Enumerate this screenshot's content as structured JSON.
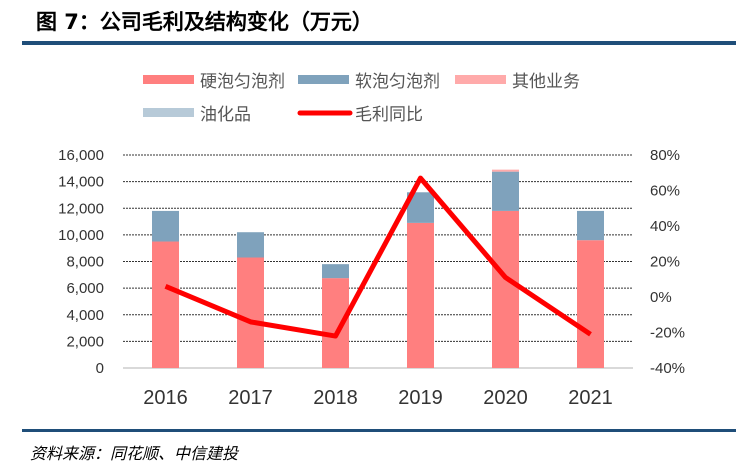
{
  "title": "图 7：公司毛利及结构变化（万元）",
  "source": "资料来源：同花顺、中信建投",
  "chart_data": {
    "type": "bar",
    "stacked": true,
    "categories": [
      "2016",
      "2017",
      "2018",
      "2019",
      "2020",
      "2021"
    ],
    "series": [
      {
        "name": "硬泡匀泡剂",
        "color": "#ff7f7f",
        "values": [
          9500,
          8300,
          6750,
          10900,
          11800,
          9600
        ]
      },
      {
        "name": "软泡匀泡剂",
        "color": "#7fa2bc",
        "values": [
          2300,
          1900,
          1050,
          2300,
          2950,
          2200
        ]
      },
      {
        "name": "其他业务",
        "color": "#ffaaaa",
        "values": [
          0,
          0,
          0,
          0,
          150,
          0
        ]
      },
      {
        "name": "油化品",
        "color": "#b7cad8",
        "values": [
          0,
          0,
          0,
          0,
          0,
          0
        ]
      }
    ],
    "line": {
      "name": "毛利同比",
      "color": "#ff0000",
      "axis": "right",
      "values": [
        6,
        -14,
        -22,
        67,
        11,
        -21
      ]
    },
    "ylim": [
      0,
      16000
    ],
    "yticks": [
      "0",
      "2,000",
      "4,000",
      "6,000",
      "8,000",
      "10,000",
      "12,000",
      "14,000",
      "16,000"
    ],
    "y2lim": [
      -40,
      80
    ],
    "y2ticks": [
      "-40%",
      "-20%",
      "0%",
      "20%",
      "40%",
      "60%",
      "80%"
    ],
    "grid": true,
    "legend": "top"
  }
}
